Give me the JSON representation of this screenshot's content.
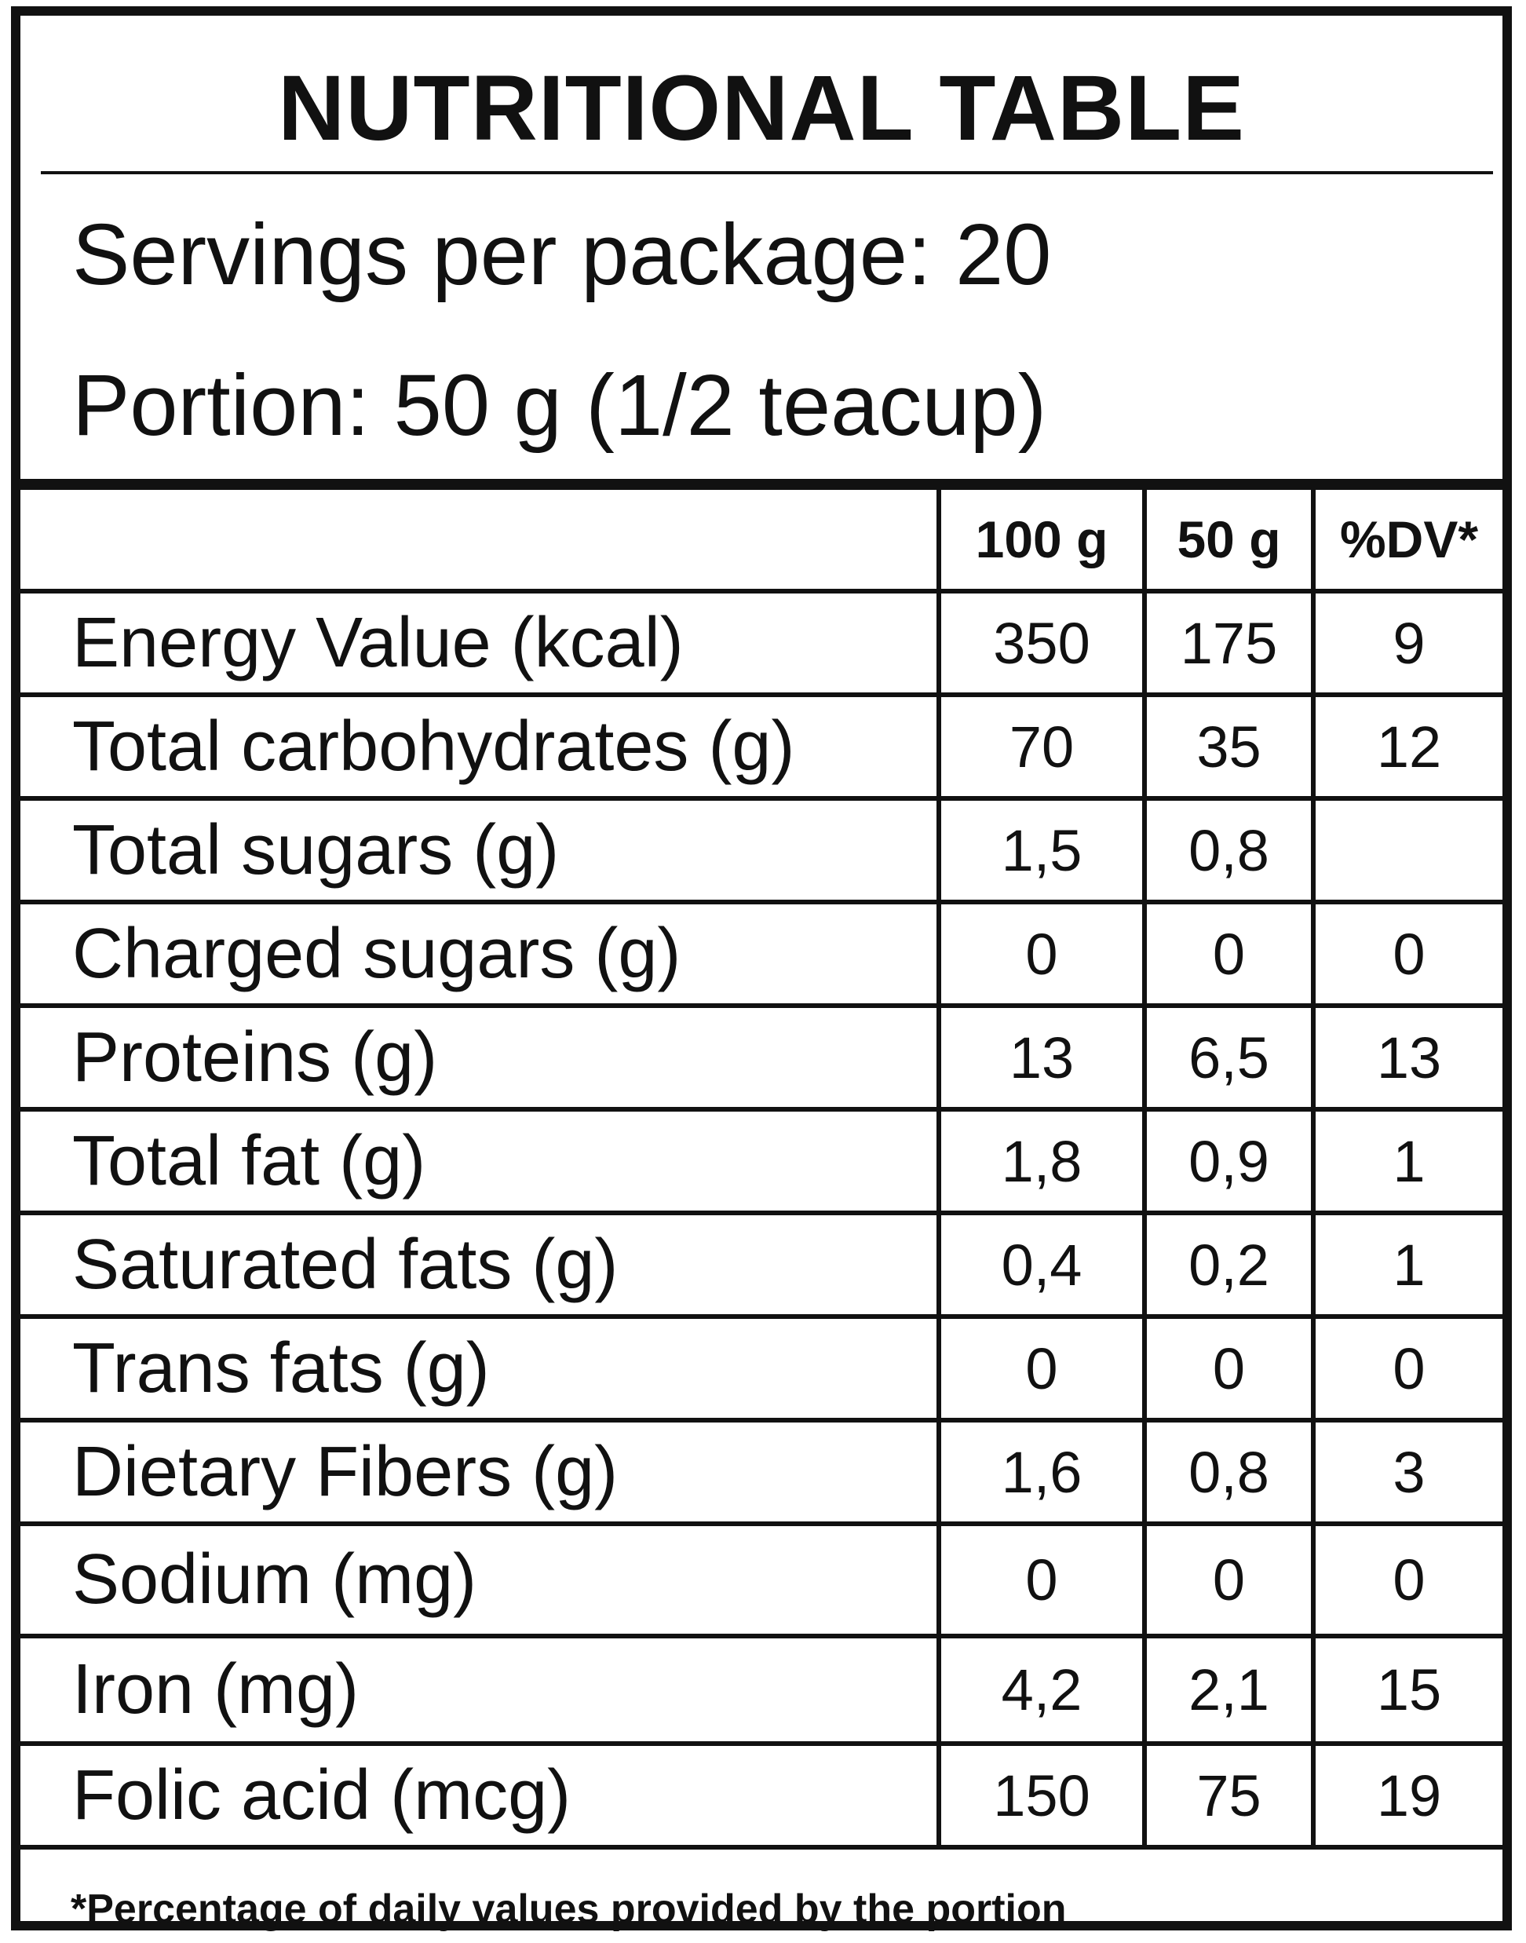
{
  "title": "NUTRITIONAL TABLE",
  "servings": "Servings per package: 20",
  "portion": "Portion: 50 g (1/2 teacup)",
  "columns": [
    "",
    "100 g",
    "50 g",
    "%DV*"
  ],
  "rows": [
    {
      "label": "Energy Value (kcal)",
      "per100g": "350",
      "per50g": "175",
      "dv": "9"
    },
    {
      "label": "Total carbohydrates (g)",
      "per100g": "70",
      "per50g": "35",
      "dv": "12"
    },
    {
      "label": "Total sugars (g)",
      "per100g": "1,5",
      "per50g": "0,8",
      "dv": ""
    },
    {
      "label": "Charged sugars (g)",
      "per100g": "0",
      "per50g": "0",
      "dv": "0"
    },
    {
      "label": "Proteins (g)",
      "per100g": "13",
      "per50g": "6,5",
      "dv": "13"
    },
    {
      "label": "Total fat (g)",
      "per100g": "1,8",
      "per50g": "0,9",
      "dv": "1"
    },
    {
      "label": "Saturated fats (g)",
      "per100g": "0,4",
      "per50g": "0,2",
      "dv": "1"
    },
    {
      "label": "Trans fats (g)",
      "per100g": "0",
      "per50g": "0",
      "dv": "0"
    },
    {
      "label": "Dietary Fibers (g)",
      "per100g": "1,6",
      "per50g": "0,8",
      "dv": "3"
    },
    {
      "label": "Sodium (mg)",
      "per100g": "0",
      "per50g": "0",
      "dv": "0"
    },
    {
      "label": "Iron (mg)",
      "per100g": "4,2",
      "per50g": "2,1",
      "dv": "15"
    },
    {
      "label": "Folic acid (mcg)",
      "per100g": "150",
      "per50g": "75",
      "dv": "19"
    }
  ],
  "footnote": "*Percentage of daily values provided by the portion"
}
